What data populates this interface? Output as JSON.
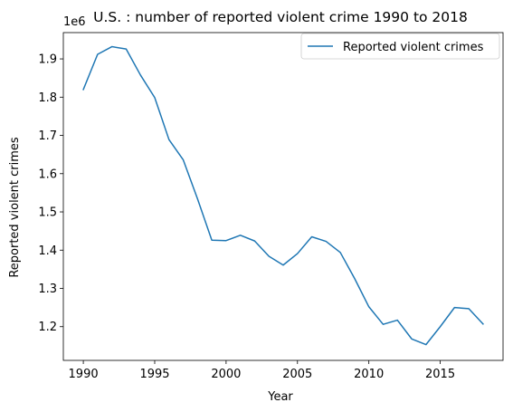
{
  "chart_data": {
    "type": "line",
    "title": "U.S. : number of reported violent crime 1990 to 2018",
    "xlabel": "Year",
    "ylabel": "Reported violent crimes",
    "offset_label": "1e6",
    "xlim": [
      1988.6,
      2019.4
    ],
    "ylim": [
      1.1118,
      1.9688
    ],
    "xticks": [
      1990,
      1995,
      2000,
      2005,
      2010,
      2015
    ],
    "yticks": [
      1.2,
      1.3,
      1.4,
      1.5,
      1.6,
      1.7,
      1.8,
      1.9
    ],
    "grid": false,
    "legend_position": "top-right",
    "colors": {
      "series": "#1f77b4"
    },
    "series": [
      {
        "name": "Reported violent crimes",
        "x": [
          1990,
          1991,
          1992,
          1993,
          1994,
          1995,
          1996,
          1997,
          1998,
          1999,
          2000,
          2001,
          2002,
          2003,
          2004,
          2005,
          2006,
          2007,
          2008,
          2009,
          2010,
          2011,
          2012,
          2013,
          2014,
          2015,
          2016,
          2017,
          2018
        ],
        "values": [
          1.82,
          1.912,
          1.932,
          1.926,
          1.858,
          1.799,
          1.689,
          1.636,
          1.534,
          1.426,
          1.425,
          1.439,
          1.424,
          1.384,
          1.361,
          1.391,
          1.435,
          1.423,
          1.394,
          1.326,
          1.252,
          1.206,
          1.217,
          1.168,
          1.153,
          1.2,
          1.25,
          1.247,
          1.207
        ]
      }
    ]
  }
}
